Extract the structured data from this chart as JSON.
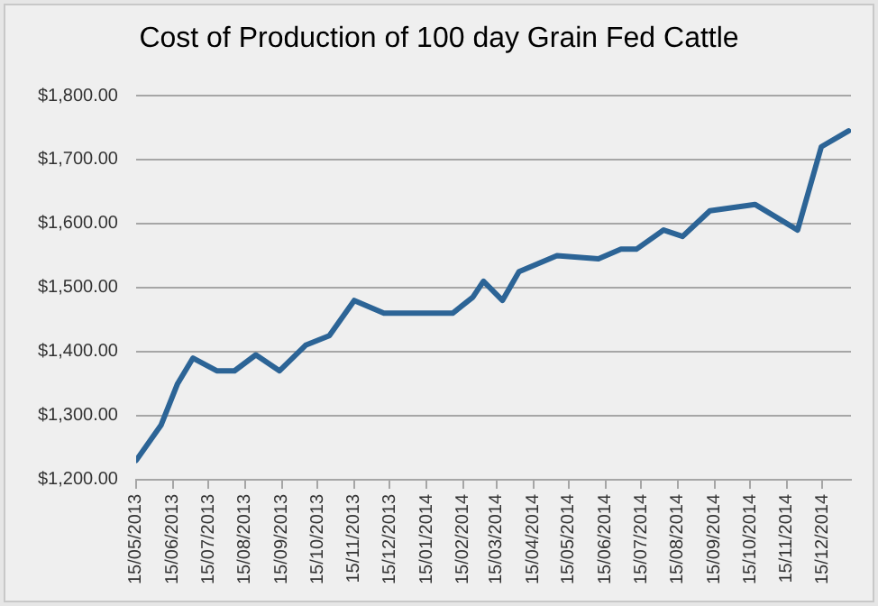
{
  "chart_data": {
    "type": "line",
    "title": "Cost of Production of 100 day Grain Fed Cattle",
    "x": [
      "2013-05-15",
      "2013-06-05",
      "2013-06-19",
      "2013-07-02",
      "2013-07-22",
      "2013-08-06",
      "2013-08-24",
      "2013-09-13",
      "2013-10-05",
      "2013-10-25",
      "2013-11-15",
      "2013-12-10",
      "2014-02-06",
      "2014-02-23",
      "2014-03-04",
      "2014-03-20",
      "2014-04-03",
      "2014-05-05",
      "2014-06-09",
      "2014-06-28",
      "2014-07-11",
      "2014-08-03",
      "2014-08-19",
      "2014-09-11",
      "2014-10-19",
      "2014-11-24",
      "2014-12-14",
      "2015-01-06"
    ],
    "series": [
      {
        "color": "#2c6496",
        "values": [
          1230,
          1285,
          1350,
          1390,
          1370,
          1370,
          1395,
          1370,
          1410,
          1425,
          1480,
          1460,
          1460,
          1485,
          1510,
          1480,
          1525,
          1550,
          1545,
          1560,
          1560,
          1590,
          1580,
          1620,
          1630,
          1590,
          1720,
          1745
        ]
      }
    ],
    "xlim": [
      "2013-05-15",
      "2015-01-08"
    ],
    "xticks": [
      {
        "value": "2013-05-15",
        "label": "15/05/2013"
      },
      {
        "value": "2013-06-15",
        "label": "15/06/2013"
      },
      {
        "value": "2013-07-15",
        "label": "15/07/2013"
      },
      {
        "value": "2013-08-15",
        "label": "15/08/2013"
      },
      {
        "value": "2013-09-15",
        "label": "15/09/2013"
      },
      {
        "value": "2013-10-15",
        "label": "15/10/2013"
      },
      {
        "value": "2013-11-15",
        "label": "15/11/2013"
      },
      {
        "value": "2013-12-15",
        "label": "15/12/2013"
      },
      {
        "value": "2014-01-15",
        "label": "15/01/2014"
      },
      {
        "value": "2014-02-15",
        "label": "15/02/2014"
      },
      {
        "value": "2014-03-15",
        "label": "15/03/2014"
      },
      {
        "value": "2014-04-15",
        "label": "15/04/2014"
      },
      {
        "value": "2014-05-15",
        "label": "15/05/2014"
      },
      {
        "value": "2014-06-15",
        "label": "15/06/2014"
      },
      {
        "value": "2014-07-15",
        "label": "15/07/2014"
      },
      {
        "value": "2014-08-15",
        "label": "15/08/2014"
      },
      {
        "value": "2014-09-15",
        "label": "15/09/2014"
      },
      {
        "value": "2014-10-15",
        "label": "15/10/2014"
      },
      {
        "value": "2014-11-15",
        "label": "15/11/2014"
      },
      {
        "value": "2014-12-15",
        "label": "15/12/2014"
      }
    ],
    "ylim": [
      1200,
      1800
    ],
    "yticks": [
      {
        "value": 1200,
        "label": "$1,200.00"
      },
      {
        "value": 1300,
        "label": "$1,300.00"
      },
      {
        "value": 1400,
        "label": "$1,400.00"
      },
      {
        "value": 1500,
        "label": "$1,500.00"
      },
      {
        "value": 1600,
        "label": "$1,600.00"
      },
      {
        "value": 1700,
        "label": "$1,700.00"
      },
      {
        "value": 1800,
        "label": "$1,800.00"
      }
    ],
    "grid": "y",
    "legend": false,
    "marker": "none",
    "line_style": "solid"
  }
}
